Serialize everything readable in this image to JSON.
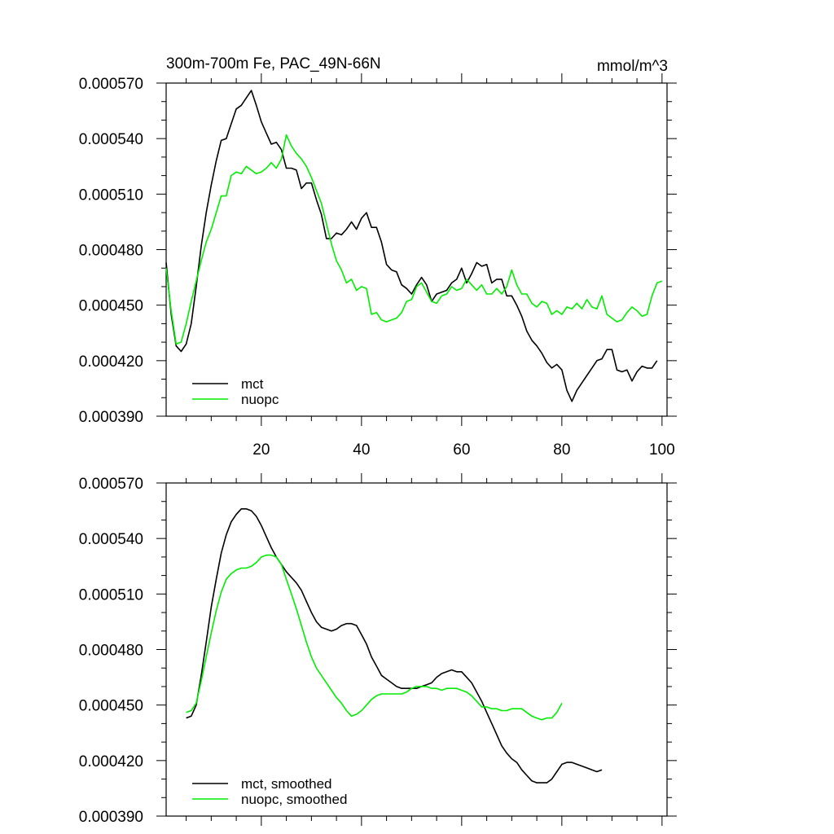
{
  "colors": {
    "mct": "#000000",
    "nuopc": "#00ee00"
  },
  "chart_data": [
    {
      "type": "line",
      "title": "300m-700m Fe, PAC_49N-66N",
      "units": "mmol/m^3",
      "xlim": [
        1,
        101
      ],
      "ylim": [
        0.00039,
        0.00057
      ],
      "yticks": [
        "0.000570",
        "0.000540",
        "0.000510",
        "0.000480",
        "0.000450",
        "0.000420",
        "0.000390"
      ],
      "xticks": [
        "20",
        "40",
        "60",
        "80",
        "100"
      ],
      "legend_position": "bottom-left",
      "series": [
        {
          "name": "mct",
          "x_start": 1,
          "values": [
            0.000473,
            0.000445,
            0.000428,
            0.000425,
            0.000429,
            0.00044,
            0.00046,
            0.000482,
            0.0005,
            0.000515,
            0.000528,
            0.000539,
            0.00054,
            0.000548,
            0.000556,
            0.000558,
            0.000562,
            0.000566,
            0.000558,
            0.000549,
            0.000543,
            0.000537,
            0.000538,
            0.000534,
            0.000524,
            0.000524,
            0.000523,
            0.000513,
            0.000516,
            0.000516,
            0.000507,
            0.000499,
            0.000486,
            0.000486,
            0.000489,
            0.000488,
            0.000491,
            0.000495,
            0.000491,
            0.000497,
            0.0005,
            0.000492,
            0.000492,
            0.000484,
            0.000472,
            0.000469,
            0.000468,
            0.000461,
            0.000459,
            0.000456,
            0.000461,
            0.000465,
            0.000461,
            0.000452,
            0.000456,
            0.000457,
            0.000458,
            0.000462,
            0.000464,
            0.00047,
            0.000462,
            0.000467,
            0.000473,
            0.000471,
            0.000472,
            0.000462,
            0.000464,
            0.000464,
            0.000455,
            0.000455,
            0.00045,
            0.000444,
            0.000436,
            0.000431,
            0.000428,
            0.000424,
            0.000419,
            0.000416,
            0.000418,
            0.000415,
            0.000404,
            0.000398,
            0.000404,
            0.000408,
            0.000412,
            0.000416,
            0.00042,
            0.000421,
            0.000426,
            0.000426,
            0.000415,
            0.000414,
            0.000415,
            0.000409,
            0.000414,
            0.000417,
            0.000416,
            0.000416,
            0.00042
          ]
        },
        {
          "name": "nuopc",
          "x_start": 1,
          "values": [
            0.00047,
            0.000447,
            0.000429,
            0.00043,
            0.00044,
            0.000452,
            0.000463,
            0.000474,
            0.000484,
            0.000491,
            0.0005,
            0.000509,
            0.000509,
            0.00052,
            0.000522,
            0.000521,
            0.000525,
            0.000523,
            0.000521,
            0.000522,
            0.000524,
            0.000527,
            0.000524,
            0.000529,
            0.000542,
            0.000536,
            0.000532,
            0.000529,
            0.000525,
            0.000519,
            0.000512,
            0.000505,
            0.000494,
            0.000483,
            0.000474,
            0.000469,
            0.000462,
            0.000464,
            0.000458,
            0.00046,
            0.000459,
            0.000445,
            0.000446,
            0.000442,
            0.000441,
            0.000442,
            0.000443,
            0.000446,
            0.000452,
            0.000453,
            0.00046,
            0.000462,
            0.000457,
            0.000452,
            0.000451,
            0.000455,
            0.000456,
            0.00046,
            0.000458,
            0.000459,
            0.000464,
            0.000461,
            0.000458,
            0.000461,
            0.000456,
            0.000456,
            0.000459,
            0.000456,
            0.00046,
            0.000469,
            0.000461,
            0.000456,
            0.000456,
            0.000451,
            0.000449,
            0.000452,
            0.000451,
            0.000445,
            0.000447,
            0.000445,
            0.000449,
            0.000448,
            0.000451,
            0.000448,
            0.000453,
            0.000449,
            0.000448,
            0.000455,
            0.000445,
            0.000443,
            0.000441,
            0.000442,
            0.000446,
            0.000449,
            0.000447,
            0.000444,
            0.000445,
            0.000455,
            0.000462,
            0.000463
          ]
        }
      ],
      "legend": [
        "mct",
        "nuopc"
      ]
    },
    {
      "type": "line",
      "title": "",
      "xlim": [
        1,
        101
      ],
      "ylim": [
        0.00039,
        0.00057
      ],
      "yticks": [
        "0.000570",
        "0.000540",
        "0.000510",
        "0.000480",
        "0.000450",
        "0.000420",
        "0.000390"
      ],
      "xticks": [],
      "legend_position": "bottom-left",
      "series": [
        {
          "name": "mct, smoothed",
          "x_start": 5,
          "values": [
            0.000443,
            0.000444,
            0.00045,
            0.000466,
            0.000484,
            0.000503,
            0.000518,
            0.000532,
            0.000542,
            0.000549,
            0.000553,
            0.000556,
            0.000556,
            0.000555,
            0.000552,
            0.000547,
            0.000541,
            0.000535,
            0.00053,
            0.000526,
            0.000522,
            0.000519,
            0.000516,
            0.000512,
            0.000506,
            0.0005,
            0.000495,
            0.000492,
            0.000491,
            0.00049,
            0.000491,
            0.000493,
            0.000494,
            0.000494,
            0.000493,
            0.000488,
            0.000483,
            0.000476,
            0.000471,
            0.000466,
            0.000464,
            0.000462,
            0.00046,
            0.000459,
            0.000459,
            0.000459,
            0.000459,
            0.00046,
            0.000461,
            0.000462,
            0.000465,
            0.000467,
            0.000468,
            0.000469,
            0.000468,
            0.000468,
            0.000465,
            0.000462,
            0.000457,
            0.000452,
            0.000446,
            0.00044,
            0.000434,
            0.000428,
            0.000424,
            0.000421,
            0.000419,
            0.000415,
            0.000412,
            0.000409,
            0.000408,
            0.000408,
            0.000408,
            0.00041,
            0.000414,
            0.000418,
            0.000419,
            0.000419,
            0.000418,
            0.000417,
            0.000416,
            0.000415,
            0.000414,
            0.000415
          ]
        },
        {
          "name": "nuopc, smoothed",
          "x_start": 5,
          "values": [
            0.000446,
            0.000447,
            0.000451,
            0.000463,
            0.000476,
            0.000489,
            0.000501,
            0.000511,
            0.000518,
            0.000521,
            0.000523,
            0.000524,
            0.000524,
            0.000525,
            0.000527,
            0.00053,
            0.000531,
            0.000531,
            0.00053,
            0.000526,
            0.000518,
            0.00051,
            0.000502,
            0.000493,
            0.000484,
            0.000476,
            0.00047,
            0.000466,
            0.000462,
            0.000458,
            0.000454,
            0.000451,
            0.000447,
            0.000444,
            0.000445,
            0.000447,
            0.00045,
            0.000453,
            0.000455,
            0.000456,
            0.000456,
            0.000456,
            0.000456,
            0.000456,
            0.000457,
            0.000459,
            0.00046,
            0.00046,
            0.00046,
            0.000459,
            0.000459,
            0.000458,
            0.000459,
            0.000459,
            0.000459,
            0.000458,
            0.000457,
            0.000455,
            0.000452,
            0.000449,
            0.000449,
            0.000448,
            0.000448,
            0.000447,
            0.000447,
            0.000448,
            0.000448,
            0.000448,
            0.000446,
            0.000444,
            0.000443,
            0.000442,
            0.000443,
            0.000443,
            0.000446,
            0.000451
          ]
        }
      ],
      "legend": [
        "mct, smoothed",
        "nuopc, smoothed"
      ]
    }
  ]
}
